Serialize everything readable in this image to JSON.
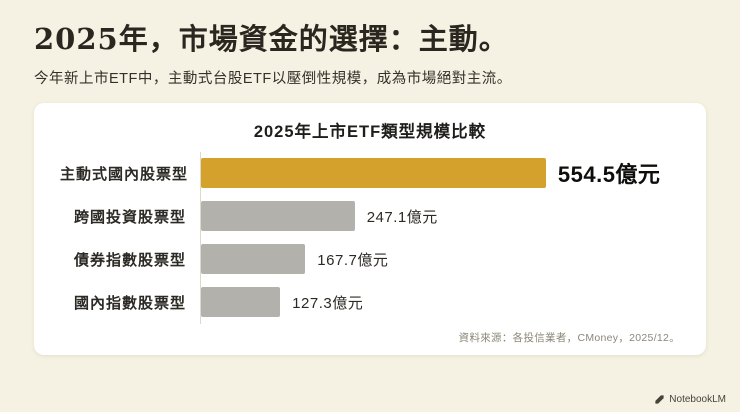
{
  "header": {
    "title": "2025年，市場資金的選擇：主動。",
    "subtitle": "今年新上市ETF中，主動式台股ETF以壓倒性規模，成為市場絕對主流。"
  },
  "chart_data": {
    "type": "bar",
    "orientation": "horizontal",
    "title": "2025年上市ETF類型規模比較",
    "categories": [
      "主動式國內股票型",
      "跨國投資股票型",
      "債券指數股票型",
      "國內指數股票型"
    ],
    "values": [
      554.5,
      247.1,
      167.7,
      127.3
    ],
    "value_labels": [
      "554.5億元",
      "247.1億元",
      "167.7億元",
      "127.3億元"
    ],
    "unit": "億元",
    "xlim": [
      0,
      600
    ],
    "grid": false,
    "legend": "none",
    "highlight_index": 0,
    "bar_colors": {
      "highlight": "#D4A12C",
      "default": "#B3B1AB"
    }
  },
  "footer": {
    "source": "資料來源：各投信業者，CMoney，2025/12。",
    "watermark": "NotebookLM"
  }
}
